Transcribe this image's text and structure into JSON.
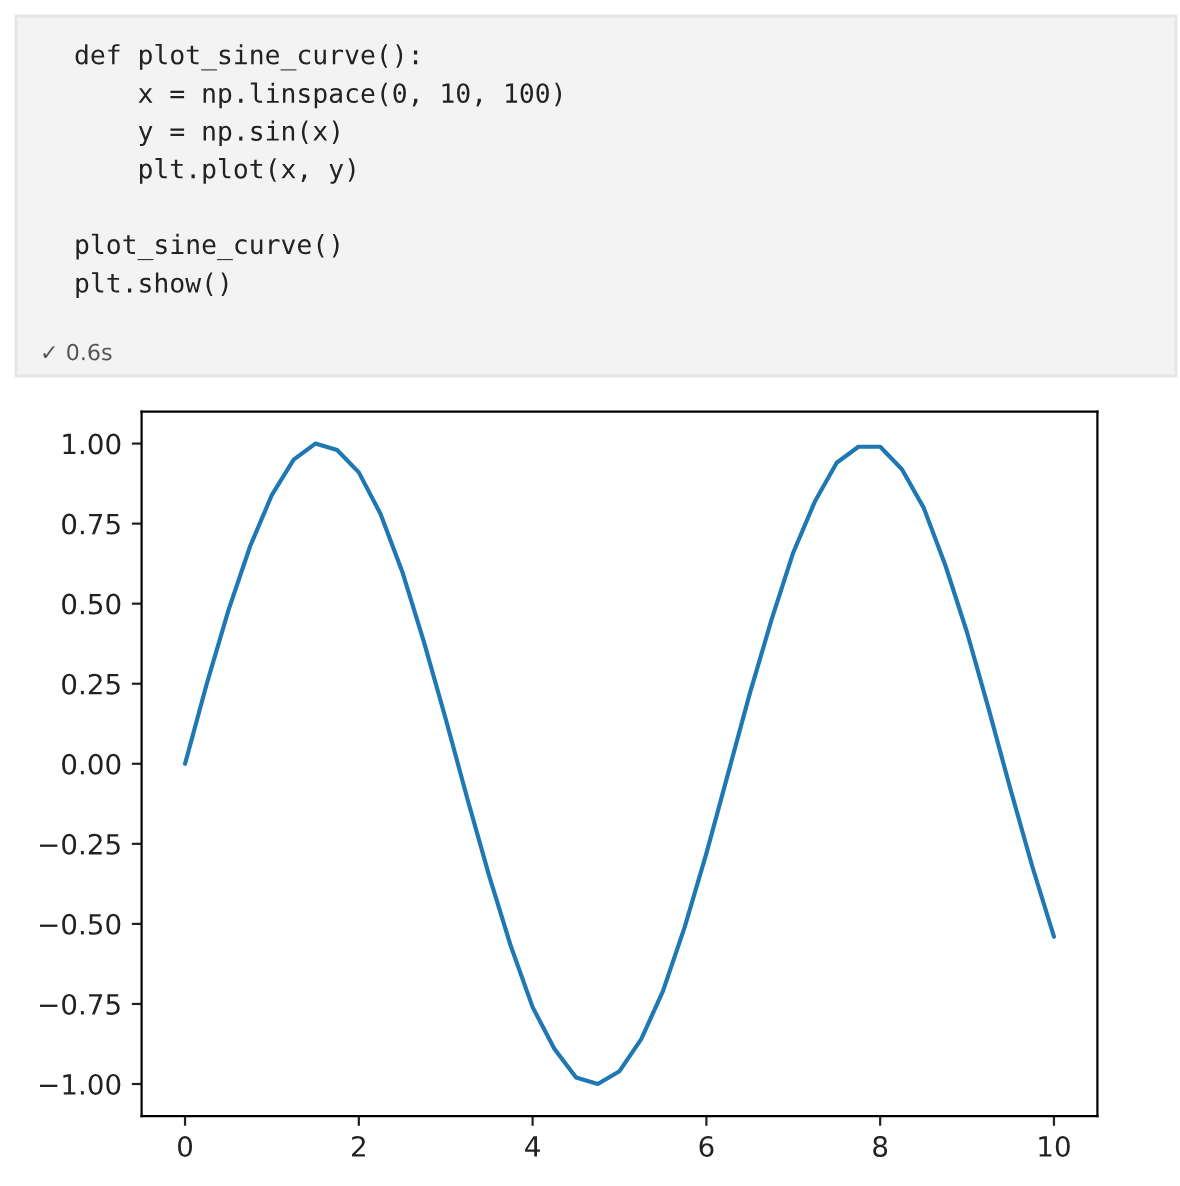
{
  "chart_data": {
    "type": "line",
    "x": [
      0,
      0.25,
      0.5,
      0.75,
      1,
      1.25,
      1.5,
      1.75,
      2,
      2.25,
      2.5,
      2.75,
      3,
      3.25,
      3.5,
      3.75,
      4,
      4.25,
      4.5,
      4.75,
      5,
      5.25,
      5.5,
      5.75,
      6,
      6.25,
      6.5,
      6.75,
      7,
      7.25,
      7.5,
      7.75,
      8,
      8.25,
      8.5,
      8.75,
      9,
      9.25,
      9.5,
      9.75,
      10
    ],
    "series": [
      {
        "color": "#1f77b4",
        "values": [
          0,
          0.25,
          0.48,
          0.68,
          0.84,
          0.95,
          1.0,
          0.98,
          0.91,
          0.78,
          0.6,
          0.38,
          0.14,
          -0.11,
          -0.35,
          -0.57,
          -0.76,
          -0.89,
          -0.98,
          -1.0,
          -0.96,
          -0.86,
          -0.71,
          -0.51,
          -0.28,
          -0.03,
          0.22,
          0.45,
          0.66,
          0.82,
          0.94,
          0.99,
          0.99,
          0.92,
          0.8,
          0.62,
          0.41,
          0.17,
          -0.08,
          -0.32,
          -0.54
        ]
      }
    ],
    "xlim": [
      -0.5,
      10.5
    ],
    "ylim": [
      -1.1,
      1.1
    ],
    "xticks": [
      0,
      2,
      4,
      6,
      8,
      10
    ],
    "yticks": [
      {
        "value": -1,
        "label": "−1.00"
      },
      {
        "value": -0.75,
        "label": "−0.75"
      },
      {
        "value": -0.5,
        "label": "−0.50"
      },
      {
        "value": -0.25,
        "label": "−0.25"
      },
      {
        "value": 0,
        "label": "0.00"
      },
      {
        "value": 0.25,
        "label": "0.25"
      },
      {
        "value": 0.5,
        "label": "0.50"
      },
      {
        "value": 0.75,
        "label": "0.75"
      },
      {
        "value": 1,
        "label": "1.00"
      }
    ],
    "grid": false,
    "legend": false,
    "marker": "none",
    "line_style": "solid",
    "annotations": [
      "def plot_sine_curve():\n    x = np.linspace(0, 10, 100)\n    y = np.sin(x)\n    plt.plot(x, y)\n\nplot_sine_curve()\nplt.show()",
      "✓ 0.6s"
    ]
  }
}
